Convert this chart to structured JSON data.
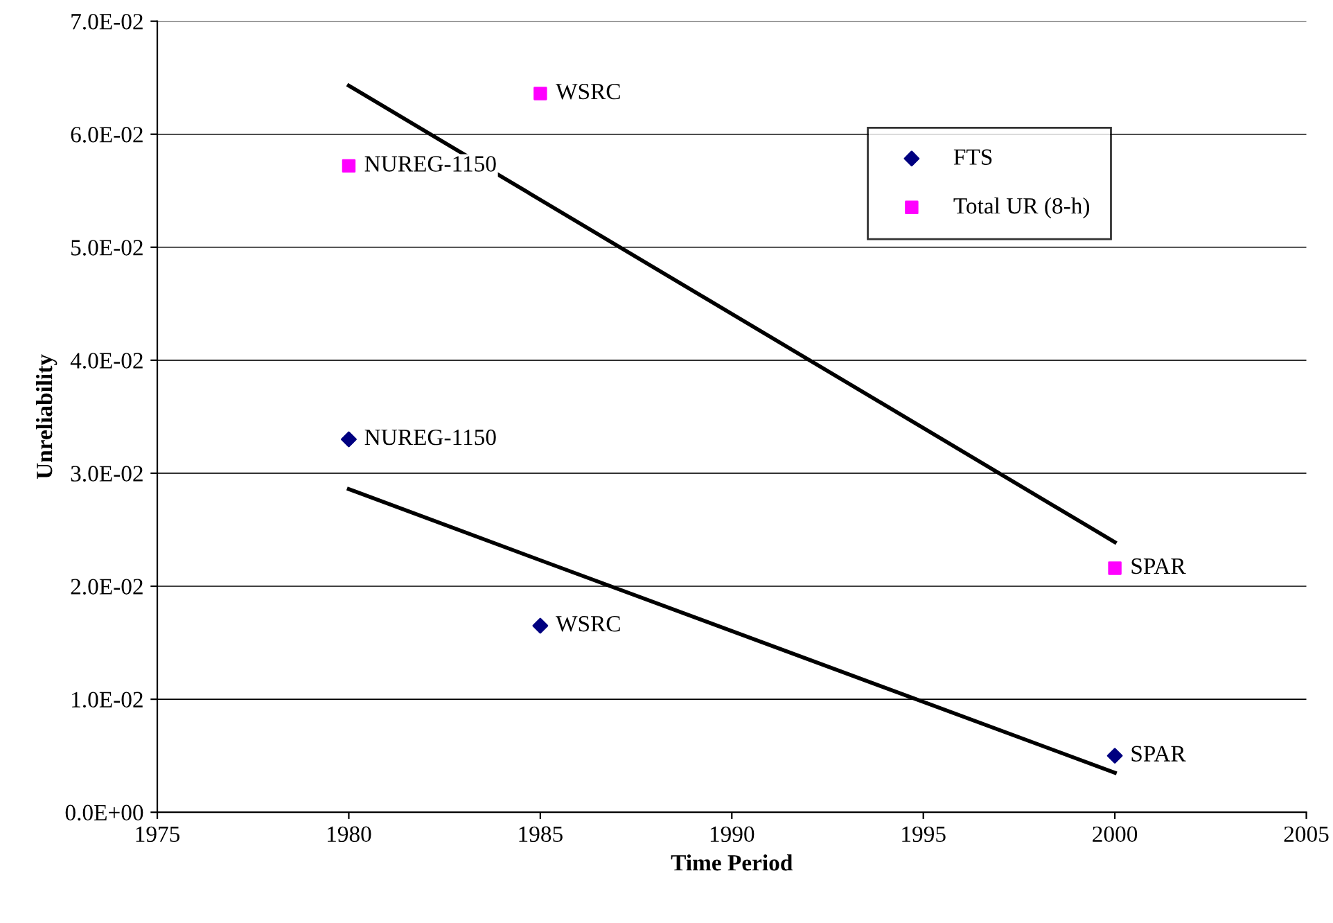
{
  "chart_data": {
    "type": "scatter",
    "xlabel": "Time Period",
    "ylabel": "Unreliability",
    "x": [
      1980,
      1985,
      2000
    ],
    "series": [
      {
        "name": "FTS",
        "color": "#000080",
        "marker": "diamond",
        "values": [
          0.033,
          0.0165,
          0.005
        ]
      },
      {
        "name": "Total UR (8-h)",
        "color": "#ff00ff",
        "marker": "square",
        "values": [
          0.0572,
          0.0636,
          0.0216
        ]
      },
      {
        "type": "line",
        "color": "#000000",
        "values": [
          0.0286,
          0.0223,
          0.0035
        ],
        "line_style": "solid"
      },
      {
        "type": "line",
        "color": "#000000",
        "values": [
          0.0643,
          0.0542,
          0.0239
        ],
        "line_style": "solid"
      }
    ],
    "xlim": [
      1975,
      2005
    ],
    "xticks": [
      1975,
      1980,
      1985,
      1990,
      1995,
      2000,
      2005
    ],
    "ylim": [
      0,
      0.07
    ],
    "yticks": [
      {
        "value": 0,
        "label": "0.0E+00"
      },
      {
        "value": 0.01,
        "label": "1.0E-02"
      },
      {
        "value": 0.02,
        "label": "2.0E-02"
      },
      {
        "value": 0.03,
        "label": "3.0E-02"
      },
      {
        "value": 0.04,
        "label": "4.0E-02"
      },
      {
        "value": 0.05,
        "label": "5.0E-02"
      },
      {
        "value": 0.06,
        "label": "6.0E-02"
      },
      {
        "value": 0.07,
        "label": "7.0E-02"
      }
    ],
    "grid": "y",
    "legend": "top right",
    "annotations": [
      {
        "text": "NUREG-1150",
        "x": 1980,
        "y": 0.033
      },
      {
        "text": "WSRC",
        "x": 1985,
        "y": 0.0165
      },
      {
        "text": "SPAR",
        "x": 2000,
        "y": 0.005
      },
      {
        "text": "NUREG-1150",
        "x": 1980,
        "y": 0.0572
      },
      {
        "text": "WSRC",
        "x": 1985,
        "y": 0.0636
      },
      {
        "text": "SPAR",
        "x": 2000,
        "y": 0.0216
      }
    ]
  }
}
